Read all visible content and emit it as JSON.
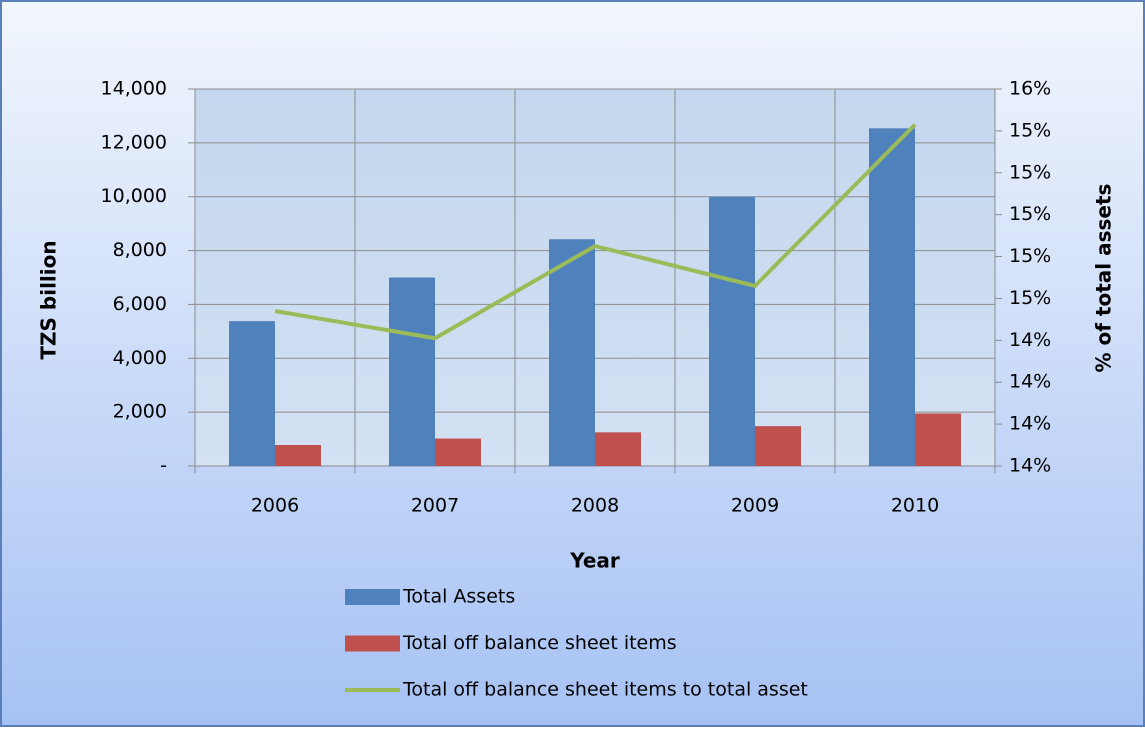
{
  "chart_data": {
    "type": "bar",
    "x_label": "Year",
    "y_label": "TZS billion",
    "y2_label": "% of total assets",
    "categories": [
      "2006",
      "2007",
      "2008",
      "2009",
      "2010"
    ],
    "series": [
      {
        "name": "Total Assets",
        "color": "#4f81bd",
        "values": [
          5380,
          7000,
          8420,
          10000,
          12540
        ]
      },
      {
        "name": "Total off balance sheet items",
        "color": "#c0504d",
        "values": [
          780,
          1020,
          1250,
          1480,
          1950
        ]
      },
      {
        "name": "Total off balance sheet items to total asset",
        "color": "#9bbb59",
        "type": "line",
        "axis": "y2",
        "values": [
          14.54,
          14.41,
          14.85,
          14.66,
          15.43
        ]
      }
    ],
    "ylim": [
      0,
      14000
    ],
    "yticks": [
      {
        "value": 0,
        "label": "-"
      },
      {
        "value": 2000,
        "label": "2,000"
      },
      {
        "value": 4000,
        "label": "4,000"
      },
      {
        "value": 6000,
        "label": "6,000"
      },
      {
        "value": 8000,
        "label": "8,000"
      },
      {
        "value": 10000,
        "label": "10,000"
      },
      {
        "value": 12000,
        "label": "12,000"
      },
      {
        "value": 14000,
        "label": "14,000"
      }
    ],
    "y2lim": [
      13.8,
      15.6
    ],
    "y2ticks": [
      {
        "value": 13.8,
        "label": "14%"
      },
      {
        "value": 14.0,
        "label": "14%"
      },
      {
        "value": 14.2,
        "label": "14%"
      },
      {
        "value": 14.4,
        "label": "14%"
      },
      {
        "value": 14.6,
        "label": "15%"
      },
      {
        "value": 14.8,
        "label": "15%"
      },
      {
        "value": 15.0,
        "label": "15%"
      },
      {
        "value": 15.2,
        "label": "15%"
      },
      {
        "value": 15.4,
        "label": "15%"
      },
      {
        "value": 15.6,
        "label": "16%"
      }
    ],
    "grid": true,
    "legend": "bottom"
  }
}
